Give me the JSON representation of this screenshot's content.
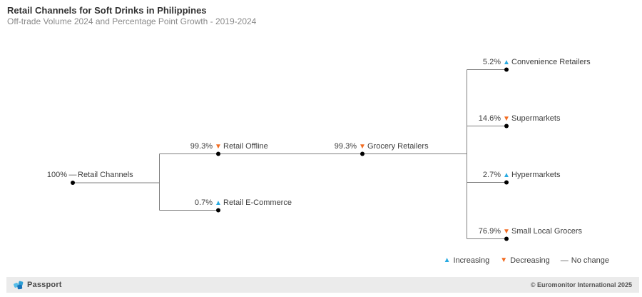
{
  "header": {
    "title": "Retail Channels for Soft Drinks in Philippines",
    "subtitle": "Off-trade Volume 2024 and Percentage Point Growth - 2019-2024"
  },
  "chart_data": {
    "type": "tree",
    "title": "Retail Channels for Soft Drinks in Philippines",
    "subtitle": "Off-trade Volume 2024 and Percentage Point Growth - 2019-2024",
    "value_meaning": "Off-trade volume share 2024 (%); arrow = direction of percentage point growth 2019-2024",
    "nodes": [
      {
        "name": "Retail Channels",
        "value": 100,
        "value_label": "100%",
        "change": "none",
        "parent": null
      },
      {
        "name": "Retail Offline",
        "value": 99.3,
        "value_label": "99.3%",
        "change": "decreasing",
        "parent": "Retail Channels"
      },
      {
        "name": "Retail E-Commerce",
        "value": 0.7,
        "value_label": "0.7%",
        "change": "increasing",
        "parent": "Retail Channels"
      },
      {
        "name": "Grocery Retailers",
        "value": 99.3,
        "value_label": "99.3%",
        "change": "decreasing",
        "parent": "Retail Offline"
      },
      {
        "name": "Convenience Retailers",
        "value": 5.2,
        "value_label": "5.2%",
        "change": "increasing",
        "parent": "Grocery Retailers"
      },
      {
        "name": "Supermarkets",
        "value": 14.6,
        "value_label": "14.6%",
        "change": "decreasing",
        "parent": "Grocery Retailers"
      },
      {
        "name": "Hypermarkets",
        "value": 2.7,
        "value_label": "2.7%",
        "change": "increasing",
        "parent": "Grocery Retailers"
      },
      {
        "name": "Small Local Grocers",
        "value": 76.9,
        "value_label": "76.9%",
        "change": "decreasing",
        "parent": "Grocery Retailers"
      }
    ],
    "legend": [
      {
        "label": "Increasing",
        "symbol": "triangle-up",
        "color": "#29abe2"
      },
      {
        "label": "Decreasing",
        "symbol": "triangle-down",
        "color": "#f26c21"
      },
      {
        "label": "No change",
        "symbol": "dash",
        "color": "#555555"
      }
    ],
    "legend_position": "bottom-right"
  },
  "colors": {
    "increasing": "#29abe2",
    "decreasing": "#f26c21",
    "no_change": "#555555",
    "line": "#808080",
    "dot": "#000000"
  },
  "footer": {
    "brand": "Passport",
    "copyright": "© Euromonitor International 2025"
  }
}
